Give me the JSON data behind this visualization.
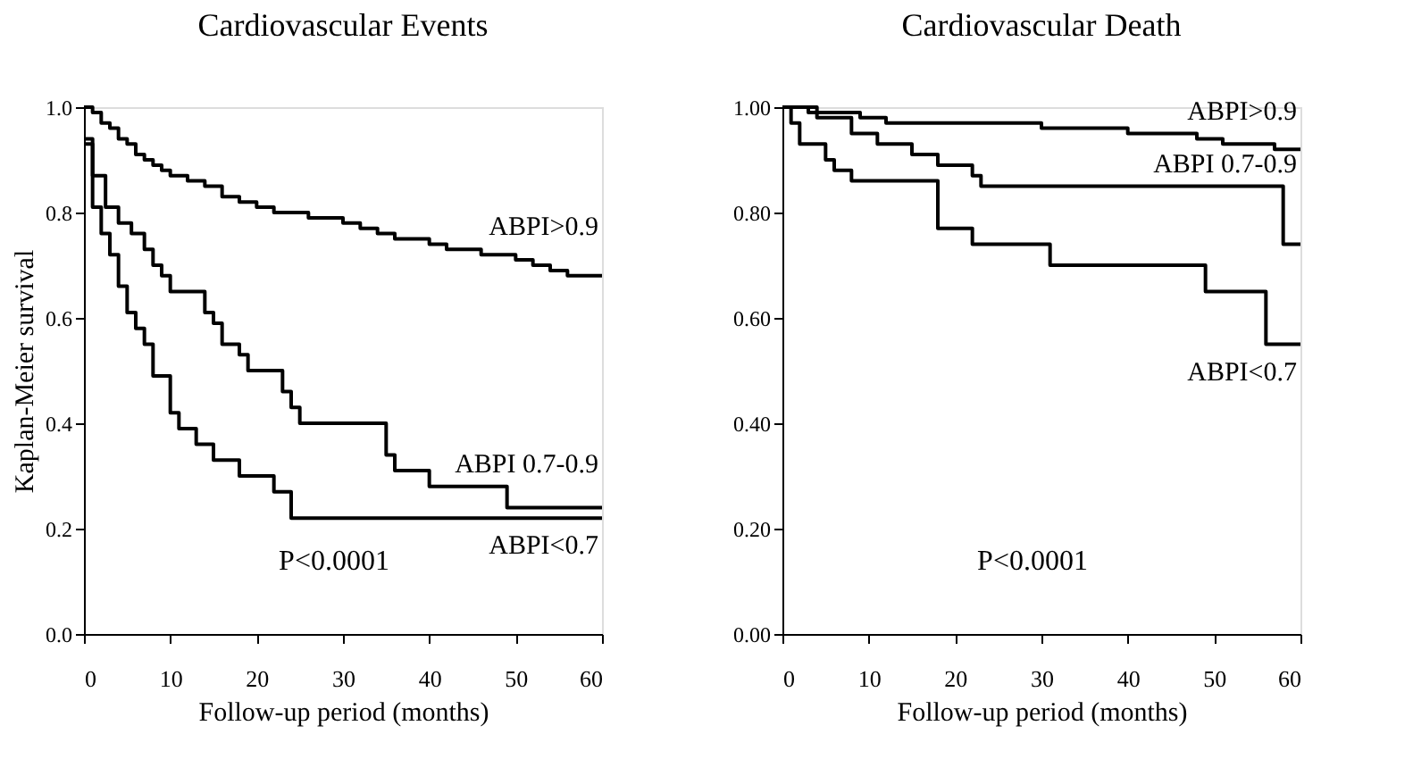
{
  "chart_data": [
    {
      "type": "step",
      "title": "Cardiovascular Events",
      "xlabel": "Follow-up period (months)",
      "ylabel": "Kaplan-Meier survival",
      "xlim": [
        0,
        60
      ],
      "xticks": [
        0,
        10,
        20,
        30,
        40,
        50,
        60
      ],
      "ylim": [
        0,
        1
      ],
      "yticks": [
        {
          "value": 0,
          "label": "0.0"
        },
        {
          "value": 0.2,
          "label": "0.2"
        },
        {
          "value": 0.4,
          "label": "0.4"
        },
        {
          "value": 0.6,
          "label": "0.6"
        },
        {
          "value": 0.8,
          "label": "0.8"
        },
        {
          "value": 1,
          "label": "1.0"
        }
      ],
      "grid": false,
      "legend": false,
      "line_style": "solid",
      "marker": "none",
      "annotations": [
        "P<0.0001"
      ],
      "series": [
        {
          "name": "ABPI>0.9",
          "color": "#000000",
          "x": [
            0,
            1,
            2,
            3,
            4,
            5,
            6,
            7,
            8,
            9,
            10,
            12,
            14,
            16,
            18,
            20,
            22,
            24,
            26,
            28,
            30,
            32,
            34,
            36,
            38,
            40,
            42,
            44,
            46,
            48,
            50,
            52,
            54,
            56,
            60
          ],
          "values": [
            1.0,
            0.99,
            0.97,
            0.96,
            0.94,
            0.93,
            0.91,
            0.9,
            0.89,
            0.88,
            0.87,
            0.86,
            0.85,
            0.83,
            0.82,
            0.81,
            0.8,
            0.8,
            0.79,
            0.79,
            0.78,
            0.77,
            0.76,
            0.75,
            0.75,
            0.74,
            0.73,
            0.73,
            0.72,
            0.72,
            0.71,
            0.7,
            0.69,
            0.68,
            0.68
          ]
        },
        {
          "name": "ABPI 0.7-0.9",
          "color": "#000000",
          "x": [
            0,
            1,
            2.5,
            4,
            5.5,
            7,
            8,
            9,
            10,
            14,
            15,
            16,
            18,
            19,
            23,
            24,
            25,
            35,
            36,
            40,
            49,
            60
          ],
          "values": [
            0.93,
            0.87,
            0.81,
            0.78,
            0.76,
            0.73,
            0.7,
            0.68,
            0.65,
            0.61,
            0.59,
            0.55,
            0.53,
            0.5,
            0.46,
            0.43,
            0.4,
            0.34,
            0.31,
            0.28,
            0.24,
            0.24
          ]
        },
        {
          "name": "ABPI<0.7",
          "color": "#000000",
          "x": [
            0,
            1,
            2,
            3,
            4,
            5,
            6,
            7,
            8,
            10,
            11,
            13,
            15,
            18,
            22,
            24,
            60
          ],
          "values": [
            0.94,
            0.81,
            0.76,
            0.72,
            0.66,
            0.61,
            0.58,
            0.55,
            0.49,
            0.42,
            0.39,
            0.36,
            0.33,
            0.3,
            0.27,
            0.22,
            0.22
          ]
        }
      ]
    },
    {
      "type": "step",
      "title": "Cardiovascular Death",
      "xlabel": "Follow-up period (months)",
      "xlim": [
        0,
        60
      ],
      "xticks": [
        0,
        10,
        20,
        30,
        40,
        50,
        60
      ],
      "ylim": [
        0,
        1
      ],
      "yticks": [
        {
          "value": 0,
          "label": "0.00"
        },
        {
          "value": 0.2,
          "label": "0.20"
        },
        {
          "value": 0.4,
          "label": "0.40"
        },
        {
          "value": 0.6,
          "label": "0.60"
        },
        {
          "value": 0.8,
          "label": "0.80"
        },
        {
          "value": 1,
          "label": "1.00"
        }
      ],
      "grid": false,
      "legend": false,
      "line_style": "solid",
      "marker": "none",
      "annotations": [
        "P<0.0001"
      ],
      "series": [
        {
          "name": "ABPI>0.9",
          "color": "#000000",
          "x": [
            0,
            3,
            6,
            9,
            12,
            18,
            25,
            30,
            35,
            40,
            45,
            48,
            51,
            54,
            57,
            60
          ],
          "values": [
            1.0,
            0.99,
            0.99,
            0.98,
            0.97,
            0.97,
            0.97,
            0.96,
            0.96,
            0.95,
            0.95,
            0.94,
            0.93,
            0.93,
            0.92,
            0.92
          ]
        },
        {
          "name": "ABPI 0.7-0.9",
          "color": "#000000",
          "x": [
            0,
            4,
            8,
            11,
            15,
            18,
            22,
            23,
            58,
            60
          ],
          "values": [
            1.0,
            0.98,
            0.95,
            0.93,
            0.91,
            0.89,
            0.87,
            0.85,
            0.74,
            0.74
          ]
        },
        {
          "name": "ABPI<0.7",
          "color": "#000000",
          "x": [
            0,
            1,
            2,
            5,
            6,
            8,
            18,
            22,
            31,
            49,
            56,
            60
          ],
          "values": [
            1.0,
            0.97,
            0.93,
            0.9,
            0.88,
            0.86,
            0.77,
            0.74,
            0.7,
            0.65,
            0.55,
            0.55
          ]
        }
      ]
    }
  ]
}
